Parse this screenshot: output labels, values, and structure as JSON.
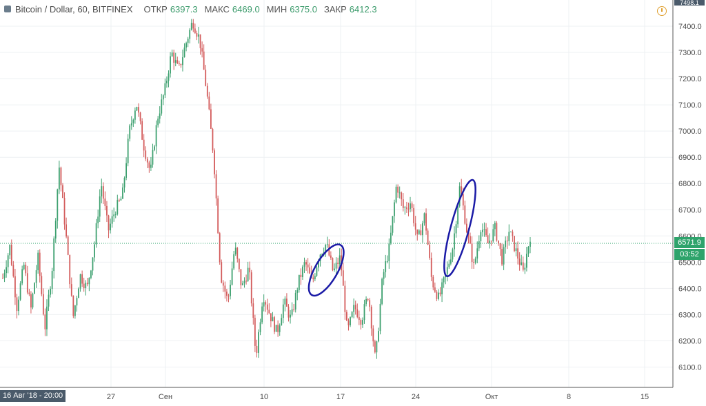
{
  "header": {
    "title": "Bitcoin / Dollar, 60, BITFINEX",
    "open_label": "ОТКР",
    "open_value": "6397.3",
    "high_label": "МАКС",
    "high_value": "6469.0",
    "low_label": "МИН",
    "low_value": "6375.0",
    "close_label": "ЗАКР",
    "close_value": "6412.3"
  },
  "top_badge": "7498.1",
  "current_price": "6571.9",
  "countdown": "03:52",
  "crosshair_date": "16 Авг '18 - 20:00",
  "colors": {
    "up": "#3da06f",
    "down": "#d35b5b",
    "annotation": "#1a1aa6",
    "price_line": "#2ea36b"
  },
  "chart_data": {
    "type": "candlestick",
    "ylim": [
      6050,
      7500
    ],
    "y_ticks": [
      "7400.0",
      "7300.0",
      "7200.0",
      "7100.0",
      "7000.0",
      "6900.0",
      "6800.0",
      "6700.0",
      "6600.0",
      "6500.0",
      "6400.0",
      "6300.0",
      "6200.0",
      "6100.0"
    ],
    "x_ticks": [
      "27",
      "Сен",
      "10",
      "17",
      "24",
      "Окт",
      "8",
      "15"
    ],
    "current_price": 6571.9,
    "price_path": [
      {
        "t": 0,
        "p": 6440
      },
      {
        "t": 1,
        "p": 6560
      },
      {
        "t": 2,
        "p": 6330
      },
      {
        "t": 3,
        "p": 6490
      },
      {
        "t": 4,
        "p": 6320
      },
      {
        "t": 5,
        "p": 6520
      },
      {
        "t": 6,
        "p": 6250
      },
      {
        "t": 7,
        "p": 6470
      },
      {
        "t": 8,
        "p": 6870
      },
      {
        "t": 9,
        "p": 6600
      },
      {
        "t": 10,
        "p": 6290
      },
      {
        "t": 11,
        "p": 6450
      },
      {
        "t": 12,
        "p": 6400
      },
      {
        "t": 13,
        "p": 6560
      },
      {
        "t": 14,
        "p": 6800
      },
      {
        "t": 15,
        "p": 6620
      },
      {
        "t": 16,
        "p": 6700
      },
      {
        "t": 17,
        "p": 6750
      },
      {
        "t": 18,
        "p": 7000
      },
      {
        "t": 19,
        "p": 7110
      },
      {
        "t": 20,
        "p": 6950
      },
      {
        "t": 21,
        "p": 6840
      },
      {
        "t": 22,
        "p": 7050
      },
      {
        "t": 23,
        "p": 7150
      },
      {
        "t": 24,
        "p": 7300
      },
      {
        "t": 25,
        "p": 7230
      },
      {
        "t": 26,
        "p": 7330
      },
      {
        "t": 27,
        "p": 7420
      },
      {
        "t": 28,
        "p": 7350
      },
      {
        "t": 29,
        "p": 7150
      },
      {
        "t": 30,
        "p": 6900
      },
      {
        "t": 31,
        "p": 6450
      },
      {
        "t": 32,
        "p": 6350
      },
      {
        "t": 33,
        "p": 6560
      },
      {
        "t": 34,
        "p": 6400
      },
      {
        "t": 35,
        "p": 6480
      },
      {
        "t": 36,
        "p": 6140
      },
      {
        "t": 37,
        "p": 6380
      },
      {
        "t": 38,
        "p": 6300
      },
      {
        "t": 39,
        "p": 6230
      },
      {
        "t": 40,
        "p": 6350
      },
      {
        "t": 41,
        "p": 6280
      },
      {
        "t": 42,
        "p": 6420
      },
      {
        "t": 43,
        "p": 6500
      },
      {
        "t": 44,
        "p": 6420
      },
      {
        "t": 45,
        "p": 6530
      },
      {
        "t": 46,
        "p": 6570
      },
      {
        "t": 47,
        "p": 6460
      },
      {
        "t": 48,
        "p": 6520
      },
      {
        "t": 49,
        "p": 6230
      },
      {
        "t": 50,
        "p": 6330
      },
      {
        "t": 51,
        "p": 6280
      },
      {
        "t": 52,
        "p": 6380
      },
      {
        "t": 53,
        "p": 6120
      },
      {
        "t": 54,
        "p": 6440
      },
      {
        "t": 55,
        "p": 6560
      },
      {
        "t": 56,
        "p": 6800
      },
      {
        "t": 57,
        "p": 6700
      },
      {
        "t": 58,
        "p": 6730
      },
      {
        "t": 59,
        "p": 6580
      },
      {
        "t": 60,
        "p": 6680
      },
      {
        "t": 61,
        "p": 6430
      },
      {
        "t": 62,
        "p": 6360
      },
      {
        "t": 63,
        "p": 6450
      },
      {
        "t": 64,
        "p": 6560
      },
      {
        "t": 65,
        "p": 6790
      },
      {
        "t": 66,
        "p": 6620
      },
      {
        "t": 67,
        "p": 6480
      },
      {
        "t": 68,
        "p": 6640
      },
      {
        "t": 69,
        "p": 6570
      },
      {
        "t": 70,
        "p": 6630
      },
      {
        "t": 71,
        "p": 6510
      },
      {
        "t": 72,
        "p": 6620
      },
      {
        "t": 73,
        "p": 6540
      },
      {
        "t": 74,
        "p": 6460
      },
      {
        "t": 75,
        "p": 6600
      }
    ],
    "annotations": [
      {
        "shape": "ellipse",
        "cx_t": 46,
        "cy": 6470,
        "rx_t": 1.6,
        "ry_p": 110,
        "rotate": 30
      },
      {
        "shape": "ellipse",
        "cx_t": 65,
        "cy": 6630,
        "rx_t": 1.3,
        "ry_p": 190,
        "rotate": 15
      }
    ]
  }
}
